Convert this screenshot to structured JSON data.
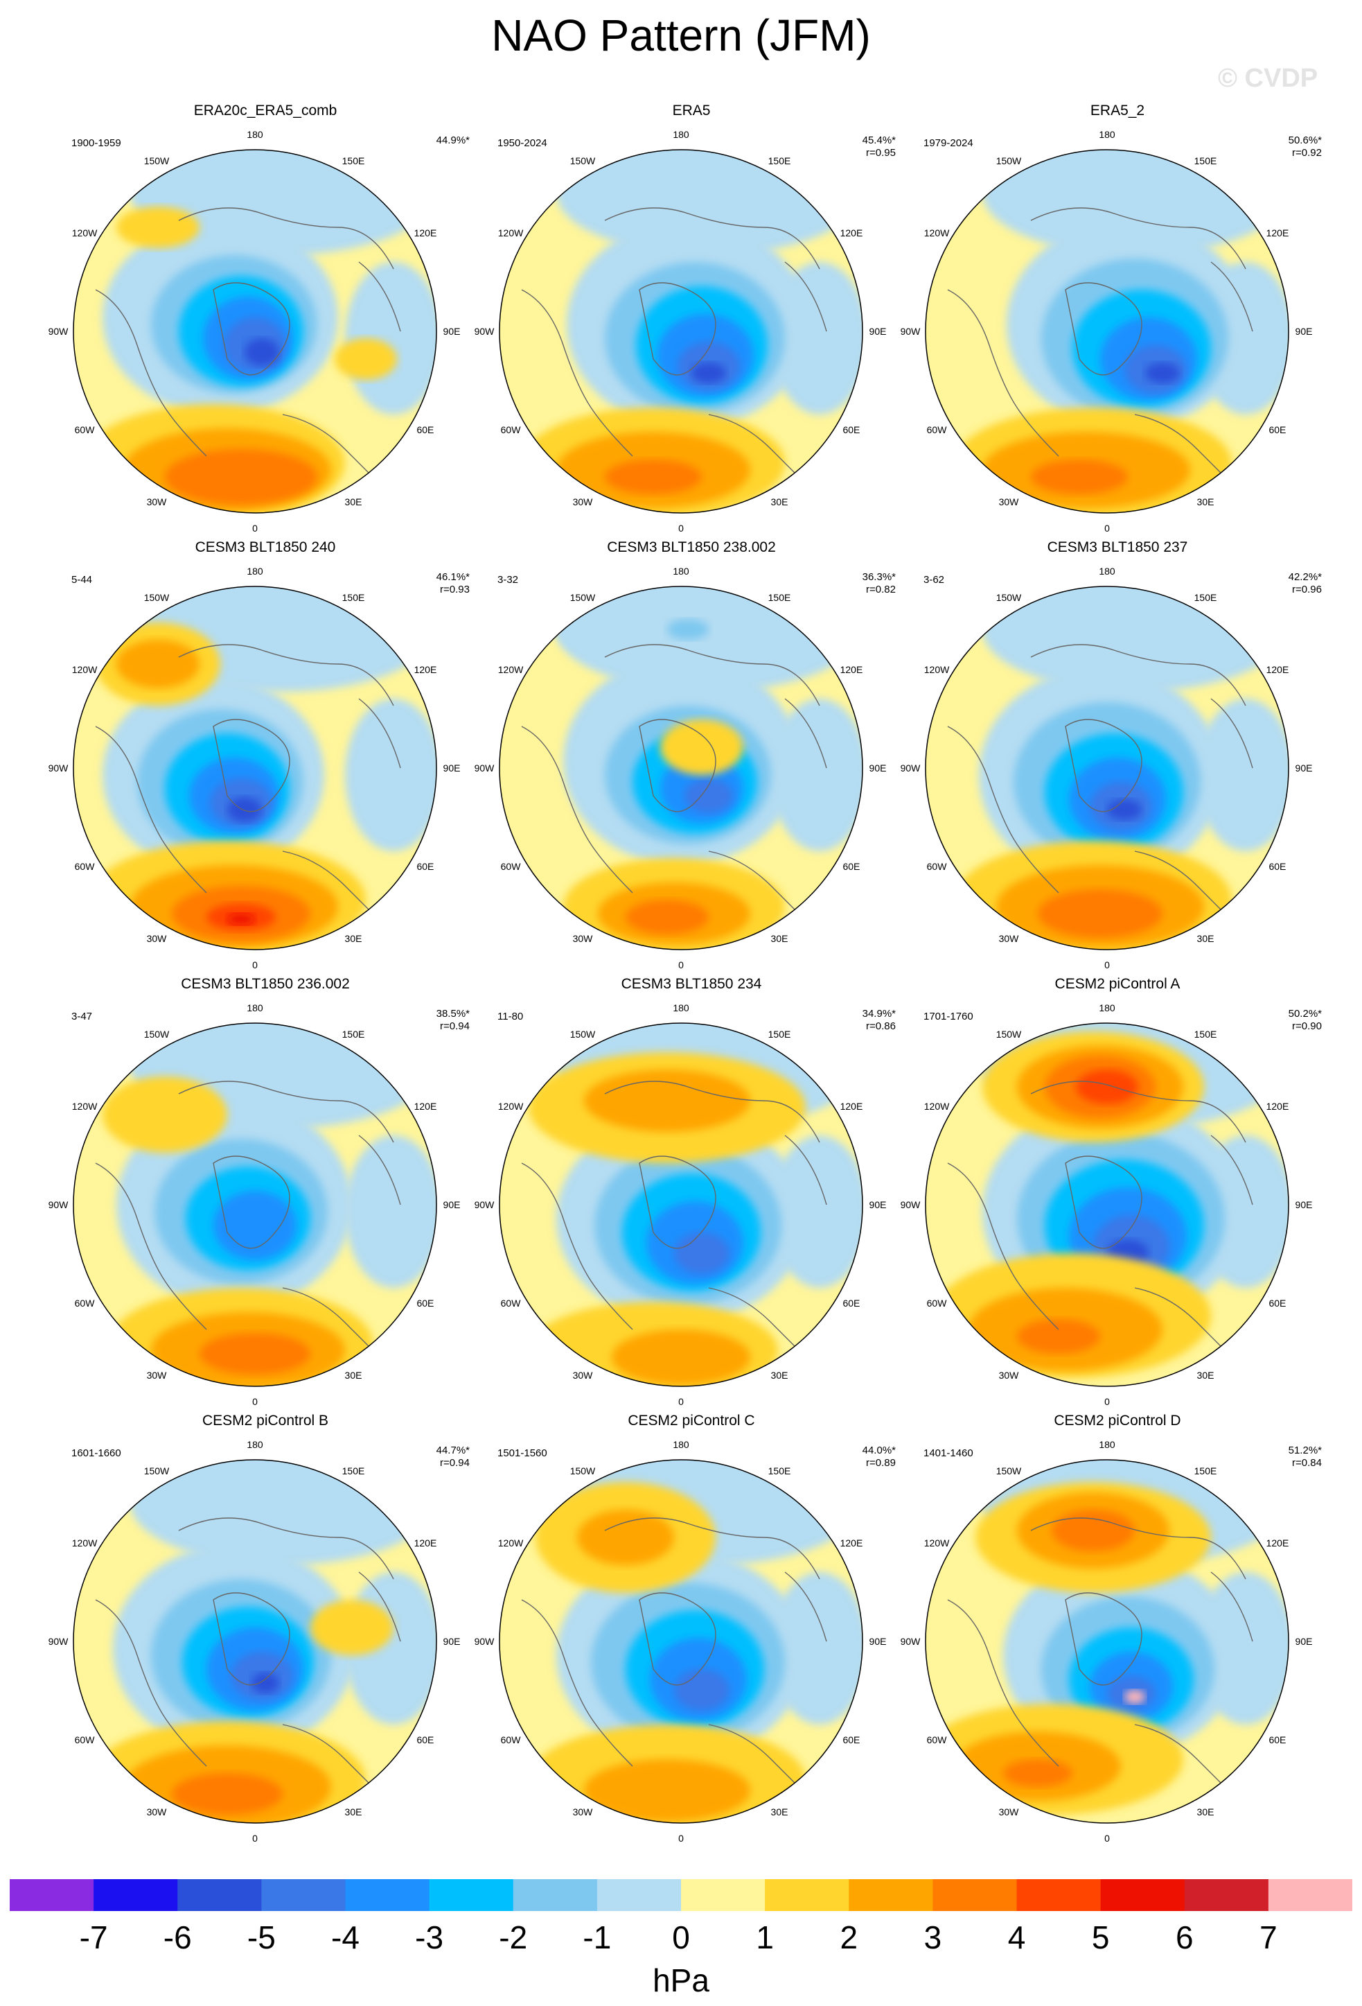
{
  "title": "NAO Pattern (JFM)",
  "watermark": "© CVDP",
  "lon_labels": [
    "180",
    "150E",
    "120E",
    "90E",
    "60E",
    "30E",
    "0",
    "30W",
    "60W",
    "90W",
    "120W",
    "150W"
  ],
  "panels": [
    {
      "title": "ERA20c_ERA5_comb",
      "years": "1900-1959",
      "pct": "44.9%*",
      "r": ""
    },
    {
      "title": "ERA5",
      "years": "1950-2024",
      "pct": "45.4%*",
      "r": "r=0.95"
    },
    {
      "title": "ERA5_2",
      "years": "1979-2024",
      "pct": "50.6%*",
      "r": "r=0.92"
    },
    {
      "title": "CESM3 BLT1850 240",
      "years": "5-44",
      "pct": "46.1%*",
      "r": "r=0.93"
    },
    {
      "title": "CESM3 BLT1850 238.002",
      "years": "3-32",
      "pct": "36.3%*",
      "r": "r=0.82"
    },
    {
      "title": "CESM3 BLT1850 237",
      "years": "3-62",
      "pct": "42.2%*",
      "r": "r=0.96"
    },
    {
      "title": "CESM3 BLT1850 236.002",
      "years": "3-47",
      "pct": "38.5%*",
      "r": "r=0.94"
    },
    {
      "title": "CESM3 BLT1850 234",
      "years": "11-80",
      "pct": "34.9%*",
      "r": "r=0.86"
    },
    {
      "title": "CESM2 piControl A",
      "years": "1701-1760",
      "pct": "50.2%*",
      "r": "r=0.90"
    },
    {
      "title": "CESM2 piControl B",
      "years": "1601-1660",
      "pct": "44.7%*",
      "r": "r=0.94"
    },
    {
      "title": "CESM2 piControl C",
      "years": "1501-1560",
      "pct": "44.0%*",
      "r": "r=0.89"
    },
    {
      "title": "CESM2 piControl D",
      "years": "1401-1460",
      "pct": "51.2%*",
      "r": "r=0.84"
    }
  ],
  "colorbar": {
    "colors": [
      "#8a2be2",
      "#1a10f0",
      "#2a4fd8",
      "#3a78e8",
      "#1e90ff",
      "#00bfff",
      "#7ec8f0",
      "#b4dcf2",
      "#fff59a",
      "#ffd52e",
      "#ffa500",
      "#ff7c00",
      "#ff4500",
      "#ee1000",
      "#d2202a",
      "#ffb6b8"
    ],
    "ticks": [
      "-7",
      "-6",
      "-5",
      "-4",
      "-3",
      "-2",
      "-1",
      "0",
      "1",
      "2",
      "3",
      "4",
      "5",
      "6",
      "7"
    ],
    "unit": "hPa"
  }
}
